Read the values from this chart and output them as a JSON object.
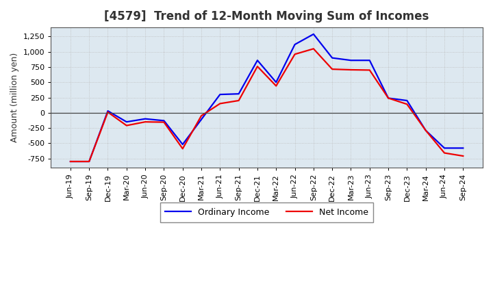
{
  "title": "[4579]  Trend of 12-Month Moving Sum of Incomes",
  "ylabel": "Amount (million yen)",
  "background_color": "#ffffff",
  "grid_color": "#bbbbbb",
  "plot_bg_color": "#dde8f0",
  "x_labels": [
    "Jun-19",
    "Sep-19",
    "Dec-19",
    "Mar-20",
    "Jun-20",
    "Sep-20",
    "Dec-20",
    "Mar-21",
    "Jun-21",
    "Sep-21",
    "Dec-21",
    "Mar-22",
    "Jun-22",
    "Sep-22",
    "Dec-22",
    "Mar-23",
    "Jun-23",
    "Sep-23",
    "Dec-23",
    "Mar-24",
    "Jun-24",
    "Sep-24"
  ],
  "ordinary_income": [
    -800,
    -800,
    30,
    -150,
    -100,
    -130,
    -520,
    -110,
    300,
    310,
    860,
    500,
    1120,
    1290,
    900,
    860,
    860,
    240,
    200,
    -290,
    -580,
    -580
  ],
  "net_income": [
    -800,
    -800,
    10,
    -210,
    -150,
    -155,
    -590,
    -50,
    150,
    200,
    760,
    440,
    960,
    1050,
    715,
    705,
    700,
    240,
    140,
    -290,
    -660,
    -710
  ],
  "ordinary_color": "#0000ee",
  "net_color": "#ee0000",
  "ylim": [
    -900,
    1400
  ],
  "yticks": [
    -750,
    -500,
    -250,
    0,
    250,
    500,
    750,
    1000,
    1250
  ],
  "line_width": 1.6,
  "legend_ordinary": "Ordinary Income",
  "legend_net": "Net Income",
  "title_color": "#333333",
  "title_fontsize": 12,
  "tick_fontsize": 8,
  "ylabel_fontsize": 9
}
